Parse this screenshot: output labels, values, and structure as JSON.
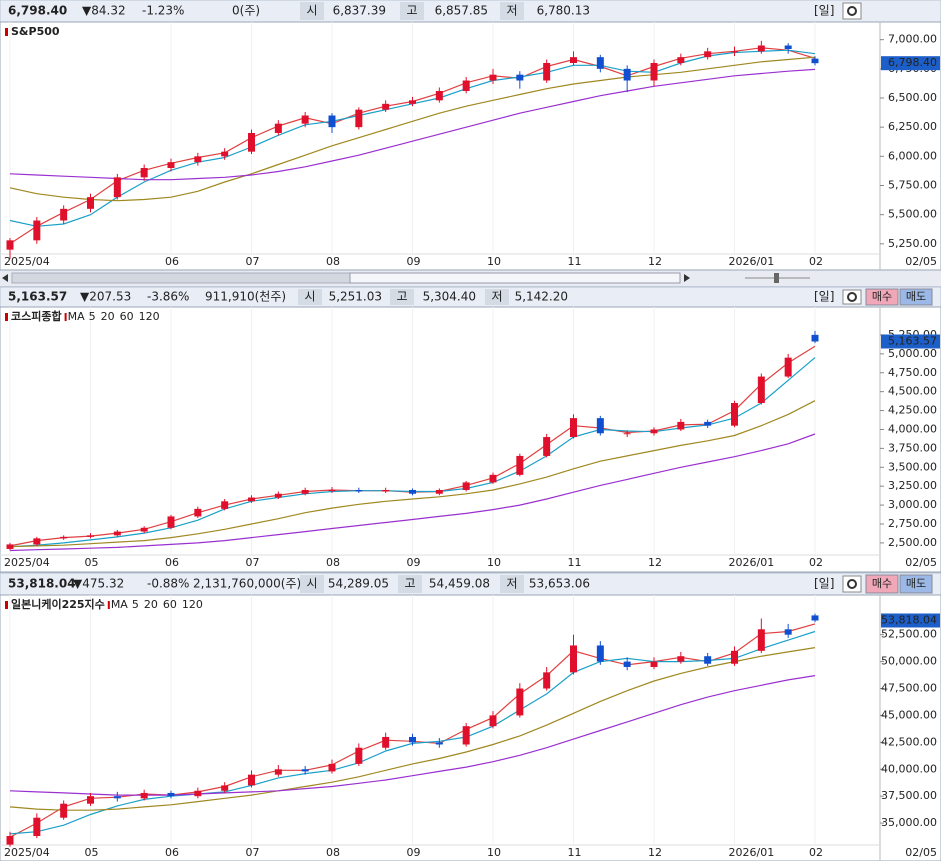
{
  "panels": [
    {
      "price": "6,798.40",
      "change": "▼84.32",
      "change_pct": "-1.23%",
      "volume": "0(주)",
      "open_label": "시",
      "open": "6,837.39",
      "high_label": "고",
      "high": "6,857.85",
      "low_label": "저",
      "low": "6,780.13",
      "period": "[일]"
    },
    {
      "price": "5,163.57",
      "change": "▼207.53",
      "change_pct": "-3.86%",
      "volume": "911,910(천주)",
      "open_label": "시",
      "open": "5,251.03",
      "high_label": "고",
      "high": "5,304.40",
      "low_label": "저",
      "low": "5,142.20",
      "period": "[일]",
      "buttons": [
        "매수",
        "매도"
      ]
    },
    {
      "price": "53,818.04",
      "change": "▼475.32",
      "change_pct": "-0.88%",
      "volume": "2,131,760,000(주)",
      "open_label": "시",
      "open": "54,289.05",
      "high_label": "고",
      "high": "54,459.08",
      "low_label": "저",
      "low": "53,653.06",
      "period": "[일]",
      "buttons": [
        "매수",
        "매도"
      ]
    }
  ],
  "chart_data": [
    {
      "type": "candlestick",
      "title": "S&P500",
      "date_label": "02/05",
      "up_color": "#e0102c",
      "down_color": "#1050d0",
      "categories": [
        "2025/04",
        null,
        null,
        null,
        null,
        null,
        "06",
        null,
        null,
        "07",
        null,
        null,
        "08",
        null,
        null,
        "09",
        null,
        null,
        "10",
        null,
        null,
        "11",
        null,
        null,
        "12",
        null,
        null,
        "2026/01",
        null,
        null,
        "02"
      ],
      "open": [
        5200,
        5280,
        5450,
        5550,
        5650,
        5820,
        5900,
        5950,
        6000,
        6040,
        6200,
        6280,
        6350,
        6250,
        6400,
        6450,
        6480,
        6560,
        6650,
        6700,
        6650,
        6800,
        6850,
        6750,
        6650,
        6800,
        6850,
        6900,
        6900,
        6950,
        6837.39
      ],
      "high": [
        5300,
        5480,
        5580,
        5680,
        5850,
        5930,
        5980,
        6030,
        6070,
        6230,
        6310,
        6380,
        6370,
        6420,
        6480,
        6510,
        6590,
        6680,
        6750,
        6730,
        6830,
        6900,
        6870,
        6780,
        6830,
        6880,
        6930,
        6940,
        6990,
        6970,
        6857.85
      ],
      "low": [
        5120,
        5250,
        5420,
        5520,
        5630,
        5790,
        5870,
        5920,
        5970,
        6020,
        6180,
        6250,
        6200,
        6230,
        6380,
        6430,
        6460,
        6540,
        6620,
        6580,
        6630,
        6780,
        6720,
        6550,
        6600,
        6780,
        6830,
        6860,
        6880,
        6880,
        6780.13
      ],
      "close": [
        5280,
        5450,
        5550,
        5650,
        5820,
        5900,
        5950,
        6000,
        6040,
        6200,
        6280,
        6350,
        6250,
        6400,
        6450,
        6480,
        6560,
        6650,
        6700,
        6650,
        6800,
        6850,
        6750,
        6650,
        6800,
        6850,
        6900,
        6900,
        6950,
        6920,
        6798.4
      ],
      "series": [
        {
          "color": "#e04040",
          "values": [
            5250,
            5400,
            5520,
            5630,
            5790,
            5880,
            5940,
            5990,
            6030,
            6160,
            6260,
            6330,
            6280,
            6370,
            6430,
            6470,
            6540,
            6630,
            6690,
            6670,
            6770,
            6830,
            6770,
            6690,
            6770,
            6840,
            6880,
            6900,
            6930,
            6910,
            6840
          ]
        },
        {
          "color": "#1aa0c8",
          "values": [
            5450,
            5400,
            5420,
            5500,
            5650,
            5780,
            5880,
            5950,
            5990,
            6080,
            6180,
            6270,
            6300,
            6350,
            6400,
            6450,
            6500,
            6580,
            6650,
            6680,
            6720,
            6780,
            6780,
            6730,
            6720,
            6800,
            6860,
            6890,
            6900,
            6910,
            6880
          ]
        },
        {
          "color": "#a08820",
          "values": [
            5730,
            5680,
            5650,
            5630,
            5620,
            5630,
            5650,
            5700,
            5780,
            5850,
            5930,
            6010,
            6090,
            6160,
            6230,
            6300,
            6370,
            6430,
            6480,
            6530,
            6580,
            6620,
            6650,
            6680,
            6700,
            6720,
            6750,
            6780,
            6810,
            6830,
            6850
          ]
        },
        {
          "color": "#9a30d0",
          "values": [
            5850,
            5840,
            5830,
            5820,
            5810,
            5800,
            5800,
            5810,
            5820,
            5840,
            5870,
            5910,
            5960,
            6010,
            6070,
            6130,
            6190,
            6250,
            6310,
            6370,
            6420,
            6470,
            6520,
            6560,
            6600,
            6630,
            6660,
            6690,
            6710,
            6730,
            6745
          ]
        }
      ],
      "ylim": [
        5180,
        7100
      ],
      "yticks": [
        {
          "value": 5250,
          "label": "5,250.00"
        },
        {
          "value": 5500,
          "label": "5,500.00"
        },
        {
          "value": 5750,
          "label": "5,750.00"
        },
        {
          "value": 6000,
          "label": "6,000.00"
        },
        {
          "value": 6250,
          "label": "6,250.00"
        },
        {
          "value": 6500,
          "label": "6,500.00"
        },
        {
          "value": 6750,
          "label": "6,750.00"
        },
        {
          "value": 7000,
          "label": "7,000.00"
        }
      ]
    },
    {
      "type": "candlestick",
      "title": "코스피종합",
      "ma_label": "MA",
      "date_label": "02/05",
      "up_color": "#e0102c",
      "down_color": "#1050d0",
      "categories": [
        "2025/04",
        null,
        null,
        "05",
        null,
        null,
        "06",
        null,
        null,
        "07",
        null,
        null,
        "08",
        null,
        null,
        "09",
        null,
        null,
        "10",
        null,
        null,
        "11",
        null,
        null,
        "12",
        null,
        null,
        "2026/01",
        null,
        null,
        "02"
      ],
      "open": [
        2420,
        2480,
        2560,
        2580,
        2600,
        2650,
        2700,
        2850,
        2950,
        3050,
        3100,
        3150,
        3200,
        3200,
        3180,
        3200,
        3150,
        3200,
        3300,
        3400,
        3650,
        3900,
        4150,
        3950,
        3950,
        4000,
        4100,
        4050,
        4350,
        4700,
        5251.03
      ],
      "high": [
        2500,
        2580,
        2600,
        2630,
        2670,
        2720,
        2870,
        2980,
        3080,
        3130,
        3180,
        3230,
        3240,
        3230,
        3230,
        3220,
        3220,
        3320,
        3430,
        3680,
        3940,
        4200,
        4180,
        3990,
        4030,
        4140,
        4130,
        4380,
        4740,
        5000,
        5304.4
      ],
      "low": [
        2400,
        2460,
        2540,
        2560,
        2580,
        2630,
        2680,
        2830,
        2930,
        3030,
        3080,
        3130,
        3160,
        3160,
        3160,
        3130,
        3130,
        3180,
        3280,
        3380,
        3630,
        3880,
        3920,
        3900,
        3920,
        3980,
        4020,
        4030,
        4330,
        4680,
        5142.2
      ],
      "close": [
        2480,
        2560,
        2580,
        2600,
        2650,
        2700,
        2850,
        2950,
        3050,
        3100,
        3150,
        3200,
        3200,
        3180,
        3200,
        3150,
        3200,
        3300,
        3400,
        3650,
        3900,
        4150,
        3950,
        3950,
        4000,
        4100,
        4050,
        4350,
        4700,
        4950,
        5163.57
      ],
      "series": [
        {
          "name": "5",
          "color": "#e04040",
          "values": [
            2460,
            2530,
            2570,
            2590,
            2630,
            2680,
            2780,
            2900,
            3000,
            3080,
            3130,
            3180,
            3200,
            3190,
            3190,
            3170,
            3180,
            3260,
            3360,
            3550,
            3800,
            4050,
            4020,
            3960,
            3980,
            4060,
            4070,
            4250,
            4600,
            4880,
            5100
          ]
        },
        {
          "name": "20",
          "color": "#1aa0c8",
          "values": [
            2450,
            2470,
            2500,
            2540,
            2580,
            2630,
            2700,
            2800,
            2950,
            3050,
            3100,
            3150,
            3180,
            3190,
            3190,
            3180,
            3180,
            3220,
            3300,
            3450,
            3650,
            3900,
            4000,
            3980,
            3970,
            4020,
            4060,
            4150,
            4350,
            4650,
            4950
          ]
        },
        {
          "name": "60",
          "color": "#a08820",
          "values": [
            2450,
            2460,
            2470,
            2490,
            2510,
            2530,
            2570,
            2620,
            2680,
            2750,
            2820,
            2900,
            2960,
            3010,
            3050,
            3080,
            3110,
            3150,
            3200,
            3280,
            3370,
            3480,
            3580,
            3650,
            3720,
            3790,
            3850,
            3920,
            4050,
            4200,
            4380
          ]
        },
        {
          "name": "120",
          "color": "#9a30d0",
          "values": [
            2400,
            2410,
            2420,
            2430,
            2440,
            2460,
            2480,
            2500,
            2530,
            2570,
            2610,
            2650,
            2690,
            2730,
            2770,
            2810,
            2850,
            2890,
            2940,
            3000,
            3080,
            3170,
            3260,
            3340,
            3420,
            3500,
            3570,
            3640,
            3720,
            3810,
            3940
          ]
        }
      ],
      "ylim": [
        2340,
        5580
      ],
      "yticks": [
        {
          "value": 2500,
          "label": "2,500.00"
        },
        {
          "value": 2750,
          "label": "2,750.00"
        },
        {
          "value": 3000,
          "label": "3,000.00"
        },
        {
          "value": 3250,
          "label": "3,250.00"
        },
        {
          "value": 3500,
          "label": "3,500.00"
        },
        {
          "value": 3750,
          "label": "3,750.00"
        },
        {
          "value": 4000,
          "label": "4,000.00"
        },
        {
          "value": 4250,
          "label": "4,250.00"
        },
        {
          "value": 4500,
          "label": "4,500.00"
        },
        {
          "value": 4750,
          "label": "4,750.00"
        },
        {
          "value": 5000,
          "label": "5,000.00"
        },
        {
          "value": 5250,
          "label": "5,250.00"
        }
      ]
    },
    {
      "type": "candlestick",
      "title": "일본니케이225지수",
      "ma_label": "MA",
      "date_label": "02/05",
      "up_color": "#e0102c",
      "down_color": "#1050d0",
      "categories": [
        "2025/04",
        null,
        null,
        "05",
        null,
        null,
        "06",
        null,
        null,
        "07",
        null,
        null,
        "08",
        null,
        null,
        "09",
        null,
        null,
        "10",
        null,
        null,
        "11",
        null,
        null,
        "12",
        null,
        null,
        "2026/01",
        null,
        null,
        "02"
      ],
      "open": [
        33000,
        33800,
        35500,
        36800,
        37500,
        37300,
        37800,
        37500,
        38000,
        38500,
        39500,
        40000,
        39800,
        40500,
        42000,
        43000,
        42500,
        42300,
        44000,
        45000,
        47500,
        49000,
        51500,
        50000,
        49500,
        50000,
        50500,
        49800,
        51000,
        53000,
        54289.05
      ],
      "high": [
        34200,
        35900,
        37100,
        37800,
        37900,
        38100,
        38000,
        38300,
        38800,
        39900,
        40400,
        40300,
        40900,
        42400,
        43400,
        43300,
        42900,
        44300,
        45400,
        48000,
        49500,
        52500,
        51900,
        50400,
        50400,
        50900,
        50800,
        51400,
        54000,
        53500,
        54459.08
      ],
      "low": [
        32800,
        33600,
        35300,
        36600,
        37000,
        37100,
        37300,
        37300,
        37800,
        38300,
        39300,
        39500,
        39600,
        40300,
        41800,
        42200,
        42000,
        42100,
        43800,
        44800,
        47300,
        48800,
        49700,
        49200,
        49300,
        49800,
        49600,
        49600,
        50800,
        52200,
        53653.06
      ],
      "close": [
        33800,
        35500,
        36800,
        37500,
        37300,
        37800,
        37500,
        38000,
        38500,
        39500,
        40000,
        39800,
        40500,
        42000,
        43000,
        42500,
        42300,
        44000,
        45000,
        47500,
        49000,
        51500,
        50000,
        49500,
        50000,
        50500,
        49800,
        51000,
        53000,
        52500,
        53818.04
      ],
      "series": [
        {
          "name": "5",
          "color": "#e04040",
          "values": [
            33700,
            35000,
            36500,
            37300,
            37400,
            37700,
            37600,
            37900,
            38400,
            39300,
            39900,
            39900,
            40400,
            41700,
            42700,
            42600,
            42400,
            43700,
            44800,
            47000,
            48700,
            51000,
            50300,
            49700,
            50000,
            50400,
            50000,
            50800,
            52600,
            52800,
            53500
          ]
        },
        {
          "name": "20",
          "color": "#1aa0c8",
          "values": [
            34000,
            34200,
            34800,
            35800,
            36600,
            37200,
            37500,
            37700,
            37900,
            38500,
            39200,
            39600,
            39900,
            40600,
            41700,
            42400,
            42600,
            43000,
            44000,
            45500,
            47000,
            49000,
            50000,
            50300,
            50000,
            50000,
            50100,
            50300,
            51200,
            52000,
            52800
          ]
        },
        {
          "name": "60",
          "color": "#a08820",
          "values": [
            36500,
            36300,
            36200,
            36200,
            36300,
            36500,
            36700,
            37000,
            37300,
            37600,
            38000,
            38400,
            38800,
            39300,
            39900,
            40500,
            41000,
            41600,
            42300,
            43100,
            44100,
            45200,
            46300,
            47300,
            48200,
            48900,
            49500,
            50000,
            50500,
            50900,
            51300
          ]
        },
        {
          "name": "120",
          "color": "#9a30d0",
          "values": [
            38000,
            37900,
            37800,
            37700,
            37600,
            37600,
            37600,
            37700,
            37800,
            37900,
            38000,
            38200,
            38400,
            38700,
            39000,
            39400,
            39800,
            40200,
            40700,
            41300,
            42000,
            42800,
            43600,
            44400,
            45200,
            46000,
            46700,
            47300,
            47800,
            48300,
            48700
          ]
        }
      ],
      "ylim": [
        32500,
        56000
      ],
      "yticks": [
        {
          "value": 35000,
          "label": "35,000.00"
        },
        {
          "value": 37500,
          "label": "37,500.00"
        },
        {
          "value": 40000,
          "label": "40,000.00"
        },
        {
          "value": 42500,
          "label": "42,500.00"
        },
        {
          "value": 45000,
          "label": "45,000.00"
        },
        {
          "value": 47500,
          "label": "47,500.00"
        },
        {
          "value": 50000,
          "label": "50,000.00"
        },
        {
          "value": 52500,
          "label": "52,500.00"
        }
      ]
    }
  ]
}
